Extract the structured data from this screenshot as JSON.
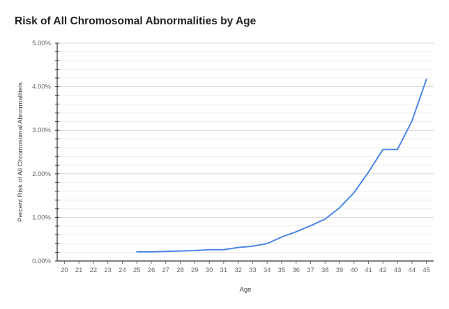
{
  "chart_data": {
    "type": "line",
    "title": "Risk of All Chromosomal Abnormalities by Age",
    "xlabel": "Age",
    "ylabel": "Percent Risk of All Chromosomal Abnormalitieis",
    "x": [
      20,
      21,
      22,
      23,
      24,
      25,
      26,
      27,
      28,
      29,
      30,
      31,
      32,
      33,
      34,
      35,
      36,
      37,
      38,
      39,
      40,
      41,
      42,
      43,
      44,
      45
    ],
    "x_tick_labels": [
      "20",
      "21",
      "22",
      "23",
      "24",
      "25",
      "26",
      "27",
      "28",
      "29",
      "30",
      "31",
      "32",
      "33",
      "34",
      "35",
      "36",
      "37",
      "38",
      "39",
      "40",
      "41",
      "42",
      "43",
      "44",
      "45"
    ],
    "series": [
      {
        "values": [
          null,
          null,
          null,
          null,
          null,
          0.21,
          0.21,
          0.22,
          0.23,
          0.24,
          0.26,
          0.26,
          0.31,
          0.34,
          0.4,
          0.55,
          0.67,
          0.81,
          0.96,
          1.22,
          1.57,
          2.04,
          2.56,
          2.56,
          3.21,
          4.17
        ],
        "color": "#4a86e8"
      }
    ],
    "ylim": [
      0,
      5
    ],
    "y_ticks": [
      0,
      1,
      2,
      3,
      4,
      5
    ],
    "y_tick_labels": [
      "0.00%",
      "1.00%",
      "2.00%",
      "3.00%",
      "4.00%",
      "5.00%"
    ],
    "grid": true,
    "legend": "none"
  }
}
